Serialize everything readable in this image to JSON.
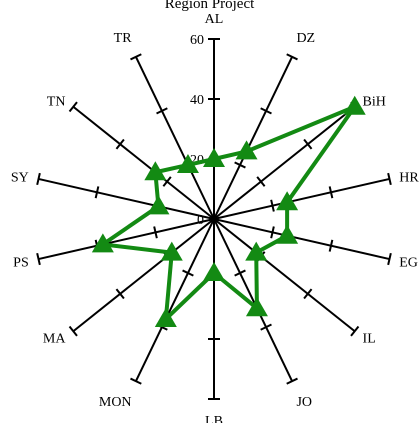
{
  "chart_data": {
    "type": "radar",
    "title": "Region Project",
    "axes": [
      "AL",
      "DZ",
      "BiH",
      "HR",
      "EG",
      "IL",
      "JO",
      "LB",
      "MON",
      "MA",
      "PS",
      "SY",
      "TN",
      "TR"
    ],
    "axis_max": 60,
    "tick_step": 20,
    "tick_labels": [
      "0",
      "20",
      "40",
      "60"
    ],
    "grid": false,
    "series": [
      {
        "values": [
          20,
          25,
          60,
          25,
          25,
          18,
          33,
          18,
          37,
          18,
          38,
          19,
          25,
          20
        ],
        "color": "#138a13"
      }
    ]
  }
}
